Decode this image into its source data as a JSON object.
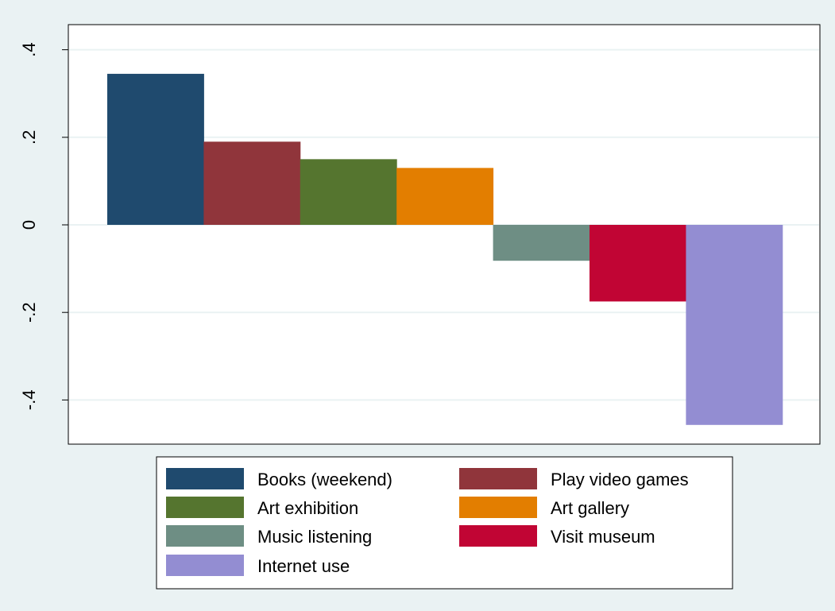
{
  "chart_data": {
    "type": "bar",
    "title": "",
    "xlabel": "",
    "ylabel": "",
    "ylim": [
      -0.5,
      0.4
    ],
    "yticks": [
      {
        "value": 0.4,
        "label": ".4"
      },
      {
        "value": 0.2,
        "label": ".2"
      },
      {
        "value": 0,
        "label": "0"
      },
      {
        "value": -0.2,
        "label": "-.2"
      },
      {
        "value": -0.4,
        "label": "-.4"
      }
    ],
    "grid": true,
    "legend_position": "bottom",
    "series": [
      {
        "name": "Books (weekend)",
        "value": 0.345,
        "color": "#1f4a6e"
      },
      {
        "name": "Play video games",
        "value": 0.19,
        "color": "#90353b"
      },
      {
        "name": "Art exhibition",
        "value": 0.15,
        "color": "#55752f"
      },
      {
        "name": "Art gallery",
        "value": 0.13,
        "color": "#e37e00"
      },
      {
        "name": "Music listening",
        "value": -0.082,
        "color": "#6e8e84"
      },
      {
        "name": "Visit museum",
        "value": -0.175,
        "color": "#c10534"
      },
      {
        "name": "Internet use",
        "value": -0.457,
        "color": "#938dd2"
      }
    ]
  },
  "colors": {
    "outer_background": "#eaf2f3",
    "plot_background": "#ffffff",
    "gridline": "#eaf2f3"
  }
}
